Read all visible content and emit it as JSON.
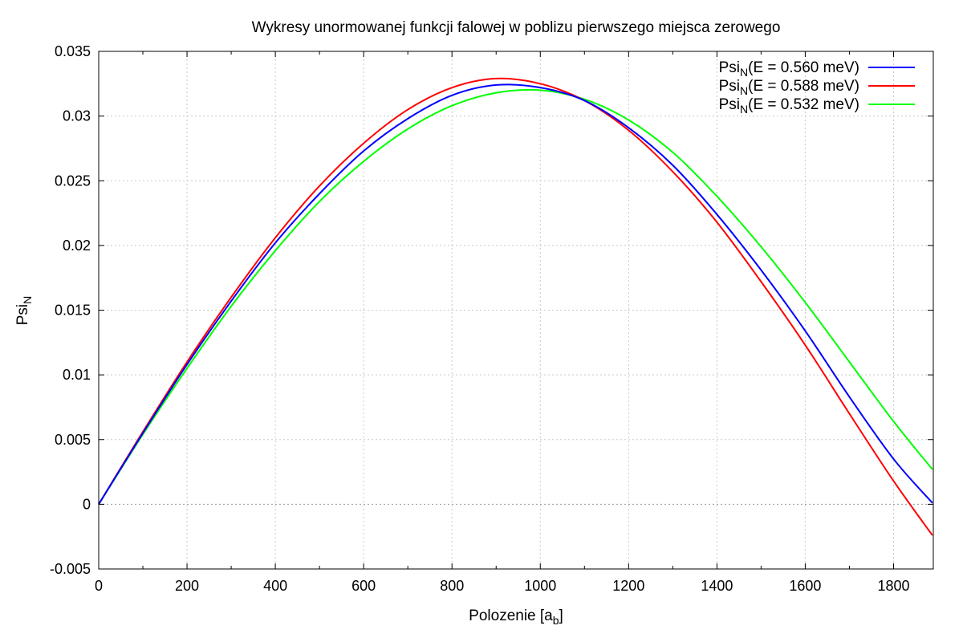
{
  "chart_data": {
    "type": "line",
    "title": "Wykresy unormowanej funkcji falowej w poblizu pierwszego miejsca zerowego",
    "xlabel_main": "Polozenie [a",
    "xlabel_sub": "b",
    "xlabel_end": "]",
    "ylabel_main": "Psi",
    "ylabel_sub": "N",
    "xlim": [
      0,
      1890
    ],
    "ylim": [
      -0.005,
      0.035
    ],
    "xticks": [
      0,
      200,
      400,
      600,
      800,
      1000,
      1200,
      1400,
      1600,
      1800
    ],
    "yticks": [
      -0.005,
      0,
      0.005,
      0.01,
      0.015,
      0.02,
      0.025,
      0.03,
      0.035
    ],
    "ytick_labels": [
      "-0.005",
      "0",
      "0.005",
      "0.01",
      "0.015",
      "0.02",
      "0.025",
      "0.03",
      "0.035"
    ],
    "grid": true,
    "legend_position": "top-right",
    "series": [
      {
        "legend_main": "Psi",
        "legend_sub": "N",
        "legend_rest": "(E = 0.560 meV)",
        "color": "#0000ff",
        "x": [
          0,
          100,
          200,
          300,
          400,
          500,
          600,
          700,
          800,
          900,
          1000,
          1100,
          1200,
          1300,
          1400,
          1500,
          1600,
          1700,
          1800,
          1888
        ],
        "y": [
          0,
          0.0055,
          0.0108,
          0.0157,
          0.0202,
          0.024,
          0.0273,
          0.0298,
          0.0316,
          0.0324,
          0.0322,
          0.0312,
          0.0291,
          0.0262,
          0.0224,
          0.0181,
          0.0134,
          0.0083,
          0.0035,
          0.0001
        ]
      },
      {
        "legend_main": "Psi",
        "legend_sub": "N",
        "legend_rest": "(E = 0.588 meV)",
        "color": "#ff0000",
        "x": [
          0,
          100,
          200,
          300,
          400,
          500,
          600,
          700,
          800,
          900,
          1000,
          1100,
          1200,
          1300,
          1400,
          1500,
          1600,
          1700,
          1800,
          1888
        ],
        "y": [
          0,
          0.0056,
          0.011,
          0.016,
          0.0206,
          0.0246,
          0.0279,
          0.0305,
          0.0322,
          0.0329,
          0.0325,
          0.0312,
          0.0289,
          0.0257,
          0.0218,
          0.0172,
          0.0123,
          0.007,
          0.0018,
          -0.0024
        ]
      },
      {
        "legend_main": "Psi",
        "legend_sub": "N",
        "legend_rest": "(E = 0.532 meV)",
        "color": "#00ff00",
        "x": [
          0,
          100,
          200,
          300,
          400,
          500,
          600,
          700,
          800,
          900,
          1000,
          1100,
          1200,
          1300,
          1400,
          1500,
          1600,
          1700,
          1800,
          1888
        ],
        "y": [
          0,
          0.0054,
          0.0105,
          0.0153,
          0.0196,
          0.0234,
          0.0265,
          0.029,
          0.0308,
          0.0318,
          0.032,
          0.0313,
          0.0297,
          0.0272,
          0.0238,
          0.0199,
          0.0156,
          0.011,
          0.0064,
          0.0027
        ]
      }
    ]
  }
}
